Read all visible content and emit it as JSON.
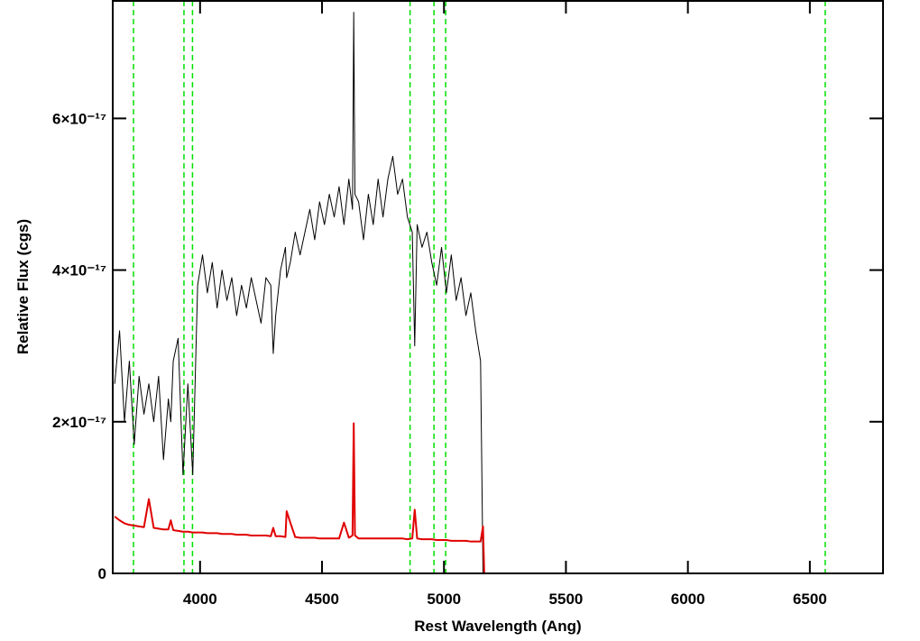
{
  "chart_data": {
    "type": "line",
    "xlabel": "Rest Wavelength (Ang)",
    "ylabel": "Relative Flux (cgs)",
    "xlim": [
      3642,
      6800
    ],
    "ylim": [
      0,
      7.55e-17
    ],
    "xticks": [
      4000,
      4500,
      5000,
      5500,
      6000,
      6500
    ],
    "yticks": [
      0,
      {
        "value": 2e-17,
        "label": "2×10⁻¹⁷"
      },
      {
        "value": 4e-17,
        "label": "4×10⁻¹⁷"
      },
      {
        "value": 6e-17,
        "label": "6×10⁻¹⁷"
      }
    ],
    "vlines": [
      3727,
      3934,
      3969,
      4861,
      4959,
      5007,
      6563
    ],
    "vline_color": "#00e000",
    "x": [
      3650,
      3670,
      3690,
      3710,
      3730,
      3750,
      3770,
      3790,
      3810,
      3830,
      3850,
      3870,
      3880,
      3890,
      3910,
      3930,
      3950,
      3970,
      3990,
      4010,
      4030,
      4050,
      4070,
      4090,
      4110,
      4130,
      4150,
      4170,
      4190,
      4210,
      4230,
      4250,
      4270,
      4290,
      4300,
      4310,
      4330,
      4350,
      4355,
      4370,
      4390,
      4410,
      4430,
      4450,
      4470,
      4490,
      4510,
      4530,
      4550,
      4570,
      4590,
      4610,
      4625,
      4630,
      4635,
      4650,
      4670,
      4690,
      4710,
      4730,
      4750,
      4770,
      4790,
      4810,
      4830,
      4850,
      4870,
      4880,
      4890,
      4910,
      4930,
      4950,
      4970,
      4990,
      5010,
      5030,
      5050,
      5070,
      5090,
      5110,
      5130,
      5150,
      5160,
      5165,
      6800
    ],
    "series": [
      {
        "color": "#000000",
        "values": [
          2.5e-17,
          3.2e-17,
          2e-17,
          2.8e-17,
          1.7e-17,
          2.6e-17,
          2.1e-17,
          2.5e-17,
          2e-17,
          2.6e-17,
          1.5e-17,
          2.3e-17,
          2e-17,
          2.8e-17,
          3.1e-17,
          1.3e-17,
          2.5e-17,
          1.3e-17,
          3.8e-17,
          4.2e-17,
          3.7e-17,
          4.1e-17,
          3.5e-17,
          4e-17,
          3.6e-17,
          3.9e-17,
          3.4e-17,
          3.8e-17,
          3.5e-17,
          3.9e-17,
          3.6e-17,
          3.3e-17,
          3.9e-17,
          3.8e-17,
          2.9e-17,
          3.4e-17,
          4e-17,
          4.3e-17,
          3.9e-17,
          4.1e-17,
          4.5e-17,
          4.2e-17,
          4.5e-17,
          4.8e-17,
          4.4e-17,
          4.9e-17,
          4.6e-17,
          5e-17,
          4.7e-17,
          5.1e-17,
          4.6e-17,
          5.2e-17,
          4.8e-17,
          7.4e-17,
          5e-17,
          4.9e-17,
          4.4e-17,
          5e-17,
          4.6e-17,
          5.2e-17,
          4.7e-17,
          5.2e-17,
          5.5e-17,
          5e-17,
          5.2e-17,
          4.7e-17,
          4.5e-17,
          3e-17,
          4.6e-17,
          4.3e-17,
          4.5e-17,
          4.1e-17,
          3.8e-17,
          4.3e-17,
          3.7e-17,
          4.2e-17,
          3.6e-17,
          3.9e-17,
          3.4e-17,
          3.7e-17,
          3.2e-17,
          2.8e-17,
          0,
          0,
          0
        ]
      },
      {
        "color": "#e00000",
        "values": [
          7.5e-18,
          7e-18,
          6.6e-18,
          6.4e-18,
          6.3e-18,
          6.2e-18,
          6.1e-18,
          9.8e-18,
          6e-18,
          5.9e-18,
          5.8e-18,
          5.8e-18,
          7e-18,
          5.7e-18,
          5.6e-18,
          5.5e-18,
          5.5e-18,
          5.4e-18,
          5.4e-18,
          5.4e-18,
          5.3e-18,
          5.3e-18,
          5.3e-18,
          5.2e-18,
          5.2e-18,
          5.2e-18,
          5.1e-18,
          5.1e-18,
          5.1e-18,
          5e-18,
          5e-18,
          5e-18,
          5e-18,
          4.9e-18,
          6e-18,
          4.9e-18,
          4.9e-18,
          4.8e-18,
          8.2e-18,
          6.7e-18,
          4.8e-18,
          4.7e-18,
          4.7e-18,
          4.7e-18,
          4.7e-18,
          4.6e-18,
          4.6e-18,
          4.6e-18,
          4.6e-18,
          4.6e-18,
          6.7e-18,
          4.7e-18,
          5e-18,
          1.98e-17,
          5e-18,
          4.6e-18,
          4.6e-18,
          4.6e-18,
          4.6e-18,
          4.6e-18,
          4.6e-18,
          4.6e-18,
          4.6e-18,
          4.6e-18,
          4.6e-18,
          4.5e-18,
          4.6e-18,
          8.4e-18,
          4.6e-18,
          4.5e-18,
          4.5e-18,
          4.5e-18,
          4.4e-18,
          4.4e-18,
          4.4e-18,
          4.3e-18,
          4.3e-18,
          4.3e-18,
          4.3e-18,
          4.2e-18,
          4.2e-18,
          4.2e-18,
          6.2e-18,
          0,
          0
        ]
      }
    ]
  }
}
